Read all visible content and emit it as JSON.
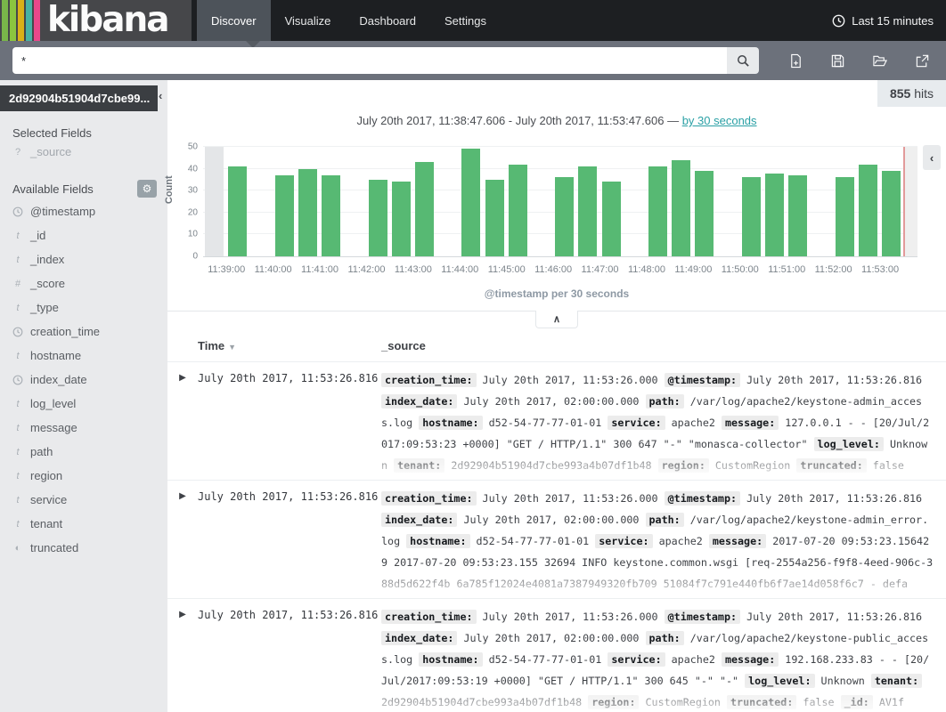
{
  "nav": {
    "logo": "kibana",
    "logo_stripes": [
      "#79B54A",
      "#8BC53F",
      "#D9B019",
      "#46B2A5",
      "#E8478B"
    ],
    "tabs": [
      {
        "label": "Discover",
        "active": true
      },
      {
        "label": "Visualize",
        "active": false
      },
      {
        "label": "Dashboard",
        "active": false
      },
      {
        "label": "Settings",
        "active": false
      }
    ],
    "timepicker_label": "Last 15 minutes"
  },
  "search": {
    "value": "*"
  },
  "toolbar_icon_names": [
    "new-document-icon",
    "save-icon",
    "open-folder-icon",
    "share-icon"
  ],
  "sidebar": {
    "index_pattern": "2d92904b51904d7cbe99...",
    "selected_fields_label": "Selected Fields",
    "selected_fields": [
      {
        "name": "_source",
        "type": "unknown"
      }
    ],
    "available_fields_label": "Available Fields",
    "available_fields": [
      {
        "name": "@timestamp",
        "type": "date"
      },
      {
        "name": "_id",
        "type": "string"
      },
      {
        "name": "_index",
        "type": "string"
      },
      {
        "name": "_score",
        "type": "number"
      },
      {
        "name": "_type",
        "type": "string"
      },
      {
        "name": "creation_time",
        "type": "date"
      },
      {
        "name": "hostname",
        "type": "string"
      },
      {
        "name": "index_date",
        "type": "date"
      },
      {
        "name": "log_level",
        "type": "string"
      },
      {
        "name": "message",
        "type": "string"
      },
      {
        "name": "path",
        "type": "string"
      },
      {
        "name": "region",
        "type": "string"
      },
      {
        "name": "service",
        "type": "string"
      },
      {
        "name": "tenant",
        "type": "string"
      },
      {
        "name": "truncated",
        "type": "boolean"
      }
    ]
  },
  "results": {
    "hits": "855",
    "hits_label": "hits",
    "time_range": "July 20th 2017, 11:38:47.606 - July 20th 2017, 11:53:47.606 —",
    "interval_link": "by 30 seconds"
  },
  "chart_data": {
    "type": "bar",
    "title": "@timestamp per 30 seconds",
    "xlabel": "@timestamp per 30 seconds",
    "ylabel": "Count",
    "ylim": [
      0,
      50
    ],
    "yticks": [
      0,
      10,
      20,
      30,
      40,
      50
    ],
    "bucket_seconds": 30,
    "x_tick_labels": [
      "11:39:00",
      "11:40:00",
      "11:41:00",
      "11:42:00",
      "11:43:00",
      "11:44:00",
      "11:45:00",
      "11:46:00",
      "11:47:00",
      "11:48:00",
      "11:49:00",
      "11:50:00",
      "11:51:00",
      "11:52:00",
      "11:53:00"
    ],
    "buckets": [
      {
        "t": "11:38:30",
        "v": 50,
        "partial": true
      },
      {
        "t": "11:39:00",
        "v": 41
      },
      {
        "t": "11:39:30",
        "v": null
      },
      {
        "t": "11:40:00",
        "v": 37
      },
      {
        "t": "11:40:30",
        "v": 40
      },
      {
        "t": "11:41:00",
        "v": 37
      },
      {
        "t": "11:41:30",
        "v": null
      },
      {
        "t": "11:42:00",
        "v": 35
      },
      {
        "t": "11:42:30",
        "v": 34
      },
      {
        "t": "11:43:00",
        "v": 43
      },
      {
        "t": "11:43:30",
        "v": null
      },
      {
        "t": "11:44:00",
        "v": 49
      },
      {
        "t": "11:44:30",
        "v": 35
      },
      {
        "t": "11:45:00",
        "v": 42
      },
      {
        "t": "11:45:30",
        "v": null
      },
      {
        "t": "11:46:00",
        "v": 36
      },
      {
        "t": "11:46:30",
        "v": 41
      },
      {
        "t": "11:47:00",
        "v": 34
      },
      {
        "t": "11:47:30",
        "v": null
      },
      {
        "t": "11:48:00",
        "v": 41
      },
      {
        "t": "11:48:30",
        "v": 44
      },
      {
        "t": "11:49:00",
        "v": 39
      },
      {
        "t": "11:49:30",
        "v": null
      },
      {
        "t": "11:50:00",
        "v": 36
      },
      {
        "t": "11:50:30",
        "v": 38
      },
      {
        "t": "11:51:00",
        "v": 37
      },
      {
        "t": "11:51:30",
        "v": null
      },
      {
        "t": "11:52:00",
        "v": 36
      },
      {
        "t": "11:52:30",
        "v": 42
      },
      {
        "t": "11:53:00",
        "v": 39
      }
    ],
    "legend": null,
    "grid": true
  },
  "table": {
    "columns": [
      "Time",
      "_source"
    ],
    "rows": [
      {
        "time": "July 20th 2017, 11:53:26.816",
        "fields": [
          {
            "k": "creation_time",
            "v": "July 20th 2017, 11:53:26.000"
          },
          {
            "k": "@timestamp",
            "v": "July 20th 2017, 11:53:26.816"
          },
          {
            "k": "index_date",
            "v": "July 20th 2017, 02:00:00.000"
          },
          {
            "k": "path",
            "v": "/var/log/apache2/keystone-admin_access.log"
          },
          {
            "k": "hostname",
            "v": "d52-54-77-77-01-01"
          },
          {
            "k": "service",
            "v": "apache2"
          },
          {
            "k": "message",
            "v": "127.0.0.1 - - [20/Jul/2017:09:53:23 +0000] \"GET / HTTP/1.1\" 300 647 \"-\" \"monasca-collector\""
          },
          {
            "k": "log_level",
            "v": "Unknown"
          },
          {
            "k": "tenant",
            "v": "2d92904b51904d7cbe993a4b07df1b48"
          },
          {
            "k": "region",
            "v": "CustomRegion"
          },
          {
            "k": "truncated",
            "v": "false"
          }
        ]
      },
      {
        "time": "July 20th 2017, 11:53:26.816",
        "fields": [
          {
            "k": "creation_time",
            "v": "July 20th 2017, 11:53:26.000"
          },
          {
            "k": "@timestamp",
            "v": "July 20th 2017, 11:53:26.816"
          },
          {
            "k": "index_date",
            "v": "July 20th 2017, 02:00:00.000"
          },
          {
            "k": "path",
            "v": "/var/log/apache2/keystone-admin_error.log"
          },
          {
            "k": "hostname",
            "v": "d52-54-77-77-01-01"
          },
          {
            "k": "service",
            "v": "apache2"
          },
          {
            "k": "message",
            "v": "2017-07-20 09:53:23.156429 2017-07-20 09:53:23.155 32694 INFO keystone.common.wsgi [req-2554a256-f9f8-4eed-906c-388d5d622f4b 6a785f12024e4081a7387949320fb709 51084f7c791e440fb6f7ae14d058f6c7 - defa"
          }
        ]
      },
      {
        "time": "July 20th 2017, 11:53:26.816",
        "fields": [
          {
            "k": "creation_time",
            "v": "July 20th 2017, 11:53:26.000"
          },
          {
            "k": "@timestamp",
            "v": "July 20th 2017, 11:53:26.816"
          },
          {
            "k": "index_date",
            "v": "July 20th 2017, 02:00:00.000"
          },
          {
            "k": "path",
            "v": "/var/log/apache2/keystone-public_access.log"
          },
          {
            "k": "hostname",
            "v": "d52-54-77-77-01-01"
          },
          {
            "k": "service",
            "v": "apache2"
          },
          {
            "k": "message",
            "v": "192.168.233.83 - - [20/Jul/2017:09:53:19 +0000] \"GET / HTTP/1.1\" 300 645 \"-\" \"-\""
          },
          {
            "k": "log_level",
            "v": "Unknown"
          },
          {
            "k": "tenant",
            "v": "2d92904b51904d7cbe993a4b07df1b48"
          },
          {
            "k": "region",
            "v": "CustomRegion"
          },
          {
            "k": "truncated",
            "v": "false"
          },
          {
            "k": "_id",
            "v": "AV1f"
          }
        ]
      }
    ]
  },
  "icon_glyphs": {
    "sort-descending": "▼",
    "expand-document": "▶",
    "collapse-left": "‹",
    "collapse-up": "∧",
    "gear": "⚙",
    "question": "?",
    "string-type": "t",
    "number-type": "#",
    "boolean-type": "◐"
  },
  "colors": {
    "accent_link": "#2AA0A5",
    "bar": "#57B973",
    "bar_partial": "#E4E6E8",
    "now_line": "#E29A9A",
    "navbar": "#1D1F22",
    "active_tab": "#4D535A",
    "search_row": "#6C717B",
    "sidebar_bg": "#E9EAEC",
    "badge_bg": "#ECECEC"
  }
}
